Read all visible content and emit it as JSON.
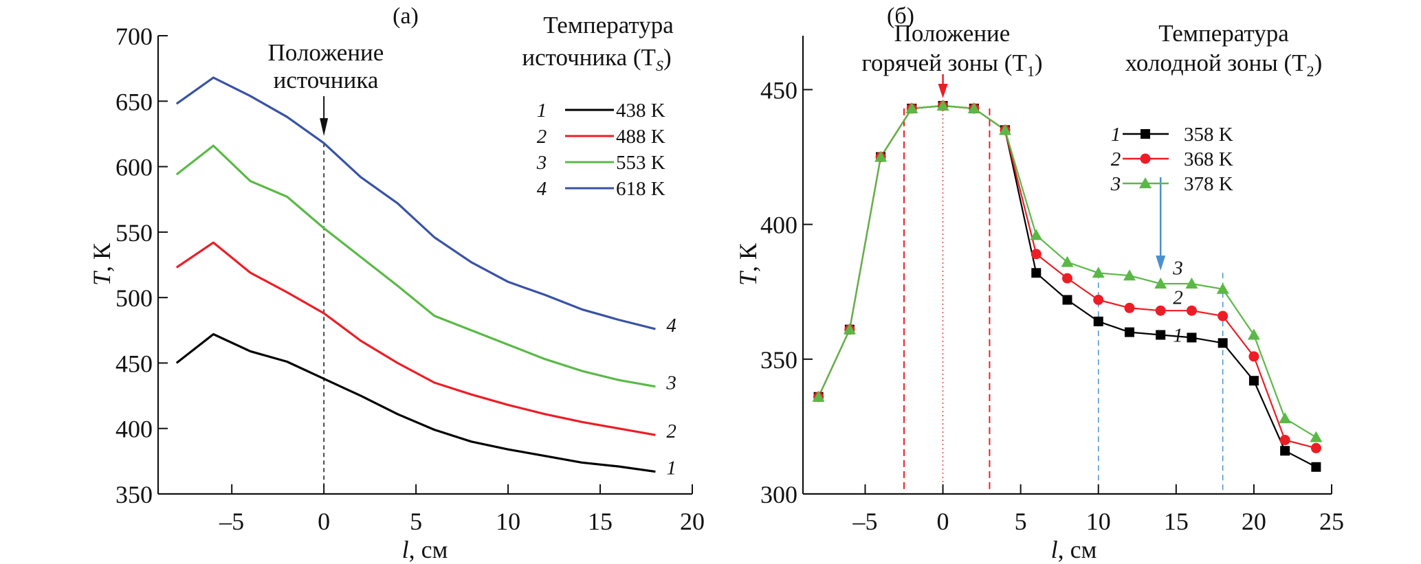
{
  "chart_data": [
    {
      "type": "line",
      "panel_label": "(a)",
      "xlabel": "l, см",
      "xlabel_var": "l",
      "xlabel_unit": ", см",
      "ylabel": "T, К",
      "ylabel_var": "T",
      "ylabel_unit": ", К",
      "xlim": [
        -9,
        20
      ],
      "ylim": [
        350,
        700
      ],
      "xticks": [
        -5,
        0,
        5,
        10,
        15,
        20
      ],
      "xtick_labels": [
        "–5",
        "0",
        "5",
        "10",
        "15",
        "20"
      ],
      "yticks": [
        350,
        400,
        450,
        500,
        550,
        600,
        650,
        700
      ],
      "ytick_labels": [
        "350",
        "400",
        "450",
        "500",
        "550",
        "600",
        "650",
        "700"
      ],
      "grid": false,
      "annotation": {
        "lines": [
          "Положение",
          "источника"
        ],
        "x": 0,
        "arrow_color": "#000000",
        "guide": "dashed vertical line at l = 0"
      },
      "legend": {
        "title_lines": [
          "Температура",
          "источника (T",
          "S",
          ")"
        ],
        "placement": "top-right"
      },
      "x": [
        -8,
        -6,
        -4,
        -2,
        0,
        2,
        4,
        6,
        8,
        10,
        12,
        14,
        16,
        18
      ],
      "series": [
        {
          "id": "1",
          "name": "438 K",
          "color": "#000000",
          "values": [
            450,
            472,
            459,
            451,
            438,
            425,
            411,
            399,
            390,
            384,
            379,
            374,
            371,
            367
          ]
        },
        {
          "id": "2",
          "name": "488 K",
          "color": "#ee1c25",
          "values": [
            523,
            542,
            519,
            504,
            488,
            467,
            450,
            435,
            426,
            418,
            411,
            405,
            400,
            395
          ]
        },
        {
          "id": "3",
          "name": "553 K",
          "color": "#5ab946",
          "values": [
            594,
            616,
            589,
            577,
            553,
            531,
            509,
            486,
            475,
            464,
            453,
            444,
            437,
            432
          ]
        },
        {
          "id": "4",
          "name": "618 K",
          "color": "#3853a4",
          "values": [
            648,
            668,
            654,
            638,
            618,
            592,
            572,
            546,
            527,
            512,
            502,
            491,
            483,
            476
          ]
        }
      ]
    },
    {
      "type": "line",
      "panel_label": "(б)",
      "xlabel": "l, см",
      "xlabel_var": "l",
      "xlabel_unit": ", см",
      "ylabel": "T, К",
      "ylabel_var": "T",
      "ylabel_unit": ", К",
      "xlim": [
        -9,
        25
      ],
      "ylim": [
        300,
        470
      ],
      "xticks": [
        -5,
        0,
        5,
        10,
        15,
        20,
        25
      ],
      "xtick_labels": [
        "–5",
        "0",
        "5",
        "10",
        "15",
        "20",
        "25"
      ],
      "yticks": [
        300,
        350,
        400,
        450
      ],
      "ytick_labels": [
        "300",
        "350",
        "400",
        "450"
      ],
      "grid": false,
      "annotation_hot": {
        "lines": [
          "Положение",
          "горячей зоны (T",
          "1",
          ")"
        ],
        "x": 0,
        "arrow_color": "#ee1c25",
        "zone_bounds": [
          -2.5,
          3
        ],
        "center_line": 0
      },
      "annotation_cold": {
        "lines": [
          "Температура",
          "холодной зоны (T",
          "2",
          ")"
        ],
        "x": 14,
        "arrow_color": "#4a90d0",
        "zone_bounds": [
          10,
          18
        ]
      },
      "legend": {
        "placement": "top-right"
      },
      "x": [
        -8,
        -6,
        -4,
        -2,
        0,
        2,
        4,
        6,
        8,
        10,
        12,
        14,
        16,
        18,
        20,
        22,
        24
      ],
      "series": [
        {
          "id": "1",
          "name": "358 K",
          "color": "#000000",
          "marker": "square",
          "values": [
            336,
            361,
            425,
            443,
            444,
            443,
            435,
            382,
            372,
            364,
            360,
            359,
            358,
            356,
            342,
            316,
            310
          ]
        },
        {
          "id": "2",
          "name": "368 K",
          "color": "#ee1c25",
          "marker": "circle",
          "values": [
            336,
            361,
            425,
            443,
            444,
            443,
            435,
            389,
            380,
            372,
            369,
            368,
            368,
            366,
            351,
            320,
            317
          ]
        },
        {
          "id": "3",
          "name": "378 K",
          "color": "#5ab946",
          "marker": "triangle",
          "values": [
            336,
            361,
            425,
            443,
            444,
            443,
            435,
            396,
            386,
            382,
            381,
            378,
            378,
            376,
            359,
            328,
            321
          ]
        }
      ]
    }
  ]
}
